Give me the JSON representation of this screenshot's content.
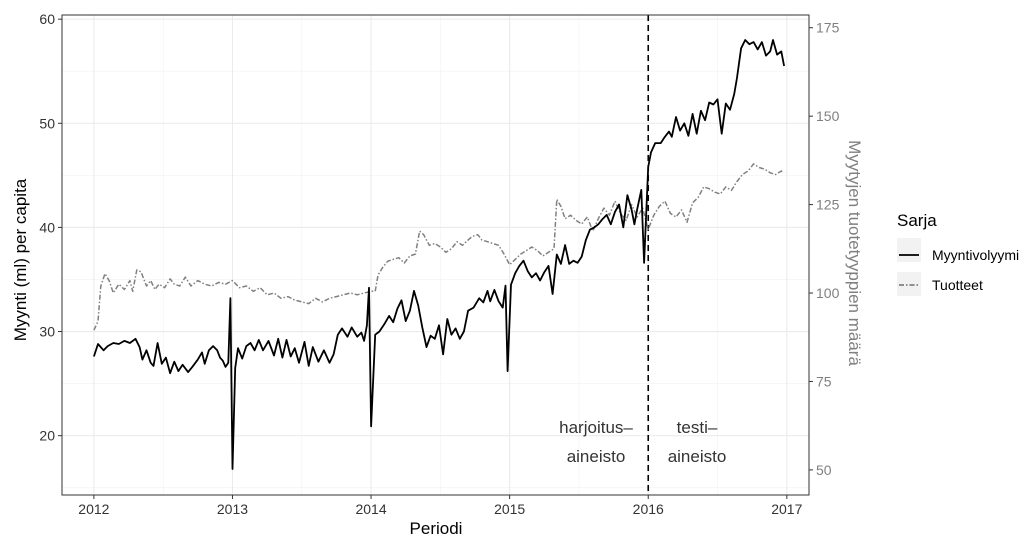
{
  "chart_data": {
    "type": "line",
    "xlabel": "Periodi",
    "ylabel": "Myynti (ml) per capita",
    "ylabel_right": "Myytyjen tuotetyyppien määrä",
    "xlim": [
      2011.77,
      2017.16
    ],
    "ylim": [
      14.3,
      60.4
    ],
    "ylim_right": [
      42.9,
      178.6
    ],
    "x_ticks": [
      2012,
      2013,
      2014,
      2015,
      2016,
      2017
    ],
    "y_ticks": [
      20,
      30,
      40,
      50,
      60
    ],
    "y_ticks_right": [
      50,
      75,
      100,
      125,
      150,
      175
    ],
    "grid": true,
    "legend": {
      "title": "Sarja",
      "position": "right",
      "entries": [
        "Myyntivolyymi",
        "Tuotteet"
      ]
    },
    "split_line_x": 2016,
    "annotations": {
      "train_line1": "harjoitus–",
      "train_line2": "aineisto",
      "test_line1": "testi–",
      "test_line2": "aineisto"
    },
    "series": [
      {
        "name": "Myyntivolyymi",
        "axis": "left",
        "color": "#000000",
        "style": "solid",
        "points": [
          [
            2012.0,
            27.6
          ],
          [
            2012.03,
            28.8
          ],
          [
            2012.07,
            28.2
          ],
          [
            2012.1,
            28.6
          ],
          [
            2012.14,
            28.9
          ],
          [
            2012.18,
            28.8
          ],
          [
            2012.22,
            29.1
          ],
          [
            2012.26,
            28.9
          ],
          [
            2012.3,
            29.3
          ],
          [
            2012.33,
            28.5
          ],
          [
            2012.35,
            27.3
          ],
          [
            2012.38,
            28.2
          ],
          [
            2012.41,
            27.0
          ],
          [
            2012.43,
            26.7
          ],
          [
            2012.46,
            28.9
          ],
          [
            2012.49,
            26.9
          ],
          [
            2012.52,
            27.5
          ],
          [
            2012.55,
            26.0
          ],
          [
            2012.58,
            27.1
          ],
          [
            2012.61,
            26.2
          ],
          [
            2012.64,
            26.8
          ],
          [
            2012.68,
            26.1
          ],
          [
            2012.71,
            26.6
          ],
          [
            2012.75,
            27.3
          ],
          [
            2012.78,
            28.0
          ],
          [
            2012.8,
            26.9
          ],
          [
            2012.83,
            28.2
          ],
          [
            2012.86,
            28.6
          ],
          [
            2012.89,
            28.2
          ],
          [
            2012.91,
            27.5
          ],
          [
            2012.93,
            27.2
          ],
          [
            2012.95,
            26.6
          ],
          [
            2012.97,
            27.0
          ],
          [
            2012.985,
            33.2
          ],
          [
            2013.0,
            16.8
          ],
          [
            2013.02,
            26.5
          ],
          [
            2013.04,
            28.4
          ],
          [
            2013.07,
            27.4
          ],
          [
            2013.1,
            28.6
          ],
          [
            2013.13,
            28.9
          ],
          [
            2013.16,
            28.2
          ],
          [
            2013.19,
            29.2
          ],
          [
            2013.22,
            28.2
          ],
          [
            2013.26,
            29.1
          ],
          [
            2013.3,
            27.7
          ],
          [
            2013.33,
            29.3
          ],
          [
            2013.36,
            27.5
          ],
          [
            2013.39,
            29.2
          ],
          [
            2013.42,
            27.6
          ],
          [
            2013.45,
            28.4
          ],
          [
            2013.48,
            27.0
          ],
          [
            2013.52,
            29.0
          ],
          [
            2013.55,
            26.7
          ],
          [
            2013.58,
            28.5
          ],
          [
            2013.62,
            27.1
          ],
          [
            2013.66,
            28.2
          ],
          [
            2013.7,
            27.0
          ],
          [
            2013.73,
            27.8
          ],
          [
            2013.76,
            29.7
          ],
          [
            2013.79,
            30.3
          ],
          [
            2013.83,
            29.5
          ],
          [
            2013.86,
            30.4
          ],
          [
            2013.9,
            29.5
          ],
          [
            2013.93,
            29.9
          ],
          [
            2013.95,
            29.1
          ],
          [
            2013.97,
            30.6
          ],
          [
            2013.985,
            34.2
          ],
          [
            2014.0,
            20.9
          ],
          [
            2014.03,
            29.7
          ],
          [
            2014.06,
            30.0
          ],
          [
            2014.1,
            30.8
          ],
          [
            2014.13,
            31.5
          ],
          [
            2014.16,
            30.9
          ],
          [
            2014.19,
            32.2
          ],
          [
            2014.22,
            33.0
          ],
          [
            2014.25,
            31.0
          ],
          [
            2014.28,
            32.0
          ],
          [
            2014.31,
            33.9
          ],
          [
            2014.34,
            32.5
          ],
          [
            2014.37,
            30.4
          ],
          [
            2014.4,
            28.5
          ],
          [
            2014.43,
            29.6
          ],
          [
            2014.46,
            29.3
          ],
          [
            2014.49,
            30.6
          ],
          [
            2014.52,
            27.8
          ],
          [
            2014.55,
            31.2
          ],
          [
            2014.58,
            29.7
          ],
          [
            2014.61,
            30.3
          ],
          [
            2014.64,
            29.3
          ],
          [
            2014.67,
            30.0
          ],
          [
            2014.7,
            32.0
          ],
          [
            2014.74,
            32.3
          ],
          [
            2014.78,
            33.2
          ],
          [
            2014.81,
            32.8
          ],
          [
            2014.84,
            33.9
          ],
          [
            2014.86,
            32.9
          ],
          [
            2014.89,
            34.0
          ],
          [
            2014.92,
            32.9
          ],
          [
            2014.95,
            32.3
          ],
          [
            2014.97,
            34.4
          ],
          [
            2014.985,
            26.2
          ],
          [
            2015.01,
            34.5
          ],
          [
            2015.04,
            35.6
          ],
          [
            2015.07,
            36.3
          ],
          [
            2015.1,
            36.8
          ],
          [
            2015.13,
            35.8
          ],
          [
            2015.16,
            35.2
          ],
          [
            2015.19,
            35.6
          ],
          [
            2015.22,
            34.9
          ],
          [
            2015.25,
            35.7
          ],
          [
            2015.28,
            36.3
          ],
          [
            2015.31,
            33.6
          ],
          [
            2015.34,
            37.4
          ],
          [
            2015.37,
            36.5
          ],
          [
            2015.4,
            38.3
          ],
          [
            2015.43,
            36.5
          ],
          [
            2015.46,
            36.8
          ],
          [
            2015.49,
            36.6
          ],
          [
            2015.52,
            37.2
          ],
          [
            2015.55,
            38.8
          ],
          [
            2015.58,
            39.8
          ],
          [
            2015.61,
            40.0
          ],
          [
            2015.64,
            40.3
          ],
          [
            2015.67,
            40.8
          ],
          [
            2015.7,
            41.2
          ],
          [
            2015.73,
            40.3
          ],
          [
            2015.76,
            41.5
          ],
          [
            2015.79,
            42.2
          ],
          [
            2015.82,
            40.0
          ],
          [
            2015.85,
            43.1
          ],
          [
            2015.88,
            41.7
          ],
          [
            2015.9,
            40.3
          ],
          [
            2015.92,
            41.7
          ],
          [
            2015.95,
            43.6
          ],
          [
            2015.97,
            36.6
          ],
          [
            2016.0,
            45.8
          ],
          [
            2016.02,
            47.2
          ],
          [
            2016.05,
            48.1
          ],
          [
            2016.09,
            48.1
          ],
          [
            2016.12,
            48.7
          ],
          [
            2016.15,
            49.2
          ],
          [
            2016.17,
            48.7
          ],
          [
            2016.2,
            50.6
          ],
          [
            2016.23,
            49.3
          ],
          [
            2016.26,
            50.0
          ],
          [
            2016.29,
            48.8
          ],
          [
            2016.32,
            50.9
          ],
          [
            2016.35,
            49.0
          ],
          [
            2016.38,
            51.2
          ],
          [
            2016.41,
            50.3
          ],
          [
            2016.44,
            52.0
          ],
          [
            2016.47,
            51.8
          ],
          [
            2016.5,
            52.3
          ],
          [
            2016.53,
            49.0
          ],
          [
            2016.56,
            51.9
          ],
          [
            2016.59,
            51.3
          ],
          [
            2016.62,
            52.8
          ],
          [
            2016.64,
            54.3
          ],
          [
            2016.67,
            57.2
          ],
          [
            2016.7,
            58.0
          ],
          [
            2016.73,
            57.6
          ],
          [
            2016.76,
            57.8
          ],
          [
            2016.79,
            57.1
          ],
          [
            2016.82,
            57.8
          ],
          [
            2016.85,
            56.5
          ],
          [
            2016.88,
            56.9
          ],
          [
            2016.9,
            58.0
          ],
          [
            2016.93,
            56.6
          ],
          [
            2016.96,
            56.9
          ],
          [
            2016.98,
            55.5
          ]
        ]
      },
      {
        "name": "Tuotteet",
        "axis": "right",
        "color": "#808080",
        "style": "dashed",
        "points": [
          [
            2012.0,
            89.5
          ],
          [
            2012.03,
            92.0
          ],
          [
            2012.05,
            102.0
          ],
          [
            2012.08,
            105.5
          ],
          [
            2012.11,
            103.5
          ],
          [
            2012.14,
            100.0
          ],
          [
            2012.18,
            102.5
          ],
          [
            2012.22,
            101.0
          ],
          [
            2012.26,
            103.5
          ],
          [
            2012.28,
            100.5
          ],
          [
            2012.31,
            106.5
          ],
          [
            2012.34,
            106.0
          ],
          [
            2012.38,
            102.0
          ],
          [
            2012.41,
            103.5
          ],
          [
            2012.44,
            101.0
          ],
          [
            2012.47,
            102.5
          ],
          [
            2012.51,
            101.5
          ],
          [
            2012.55,
            104.0
          ],
          [
            2012.58,
            102.5
          ],
          [
            2012.62,
            102.0
          ],
          [
            2012.66,
            104.5
          ],
          [
            2012.7,
            102.0
          ],
          [
            2012.75,
            103.5
          ],
          [
            2012.8,
            102.5
          ],
          [
            2012.85,
            102.0
          ],
          [
            2012.9,
            103.0
          ],
          [
            2012.95,
            102.5
          ],
          [
            2013.0,
            103.5
          ],
          [
            2013.05,
            101.5
          ],
          [
            2013.1,
            102.0
          ],
          [
            2013.15,
            100.5
          ],
          [
            2013.2,
            101.5
          ],
          [
            2013.25,
            99.5
          ],
          [
            2013.3,
            100.0
          ],
          [
            2013.35,
            98.5
          ],
          [
            2013.4,
            99.0
          ],
          [
            2013.45,
            98.0
          ],
          [
            2013.5,
            97.5
          ],
          [
            2013.55,
            97.0
          ],
          [
            2013.6,
            98.5
          ],
          [
            2013.65,
            97.5
          ],
          [
            2013.7,
            98.5
          ],
          [
            2013.75,
            99.0
          ],
          [
            2013.8,
            99.5
          ],
          [
            2013.85,
            100.0
          ],
          [
            2013.9,
            99.5
          ],
          [
            2013.95,
            100.0
          ],
          [
            2014.0,
            100.5
          ],
          [
            2014.03,
            100.5
          ],
          [
            2014.05,
            105.0
          ],
          [
            2014.08,
            107.0
          ],
          [
            2014.12,
            109.0
          ],
          [
            2014.16,
            109.5
          ],
          [
            2014.2,
            110.0
          ],
          [
            2014.24,
            108.5
          ],
          [
            2014.28,
            110.5
          ],
          [
            2014.32,
            111.0
          ],
          [
            2014.35,
            117.5
          ],
          [
            2014.38,
            116.5
          ],
          [
            2014.42,
            113.5
          ],
          [
            2014.46,
            114.0
          ],
          [
            2014.5,
            113.0
          ],
          [
            2014.54,
            111.5
          ],
          [
            2014.58,
            112.5
          ],
          [
            2014.62,
            114.5
          ],
          [
            2014.66,
            113.5
          ],
          [
            2014.7,
            115.0
          ],
          [
            2014.73,
            116.0
          ],
          [
            2014.77,
            116.5
          ],
          [
            2014.8,
            115.0
          ],
          [
            2014.84,
            114.5
          ],
          [
            2014.88,
            114.0
          ],
          [
            2014.92,
            113.5
          ],
          [
            2014.96,
            111.0
          ],
          [
            2015.0,
            108.0
          ],
          [
            2015.04,
            109.5
          ],
          [
            2015.08,
            111.0
          ],
          [
            2015.12,
            112.0
          ],
          [
            2015.16,
            113.0
          ],
          [
            2015.2,
            112.0
          ],
          [
            2015.24,
            110.5
          ],
          [
            2015.28,
            111.5
          ],
          [
            2015.32,
            112.5
          ],
          [
            2015.34,
            126.5
          ],
          [
            2015.37,
            124.5
          ],
          [
            2015.4,
            121.0
          ],
          [
            2015.44,
            122.0
          ],
          [
            2015.48,
            120.5
          ],
          [
            2015.52,
            119.5
          ],
          [
            2015.56,
            121.5
          ],
          [
            2015.6,
            117.5
          ],
          [
            2015.64,
            121.0
          ],
          [
            2015.68,
            124.0
          ],
          [
            2015.72,
            122.0
          ],
          [
            2015.76,
            126.0
          ],
          [
            2015.8,
            122.5
          ],
          [
            2015.84,
            120.5
          ],
          [
            2015.88,
            125.0
          ],
          [
            2015.92,
            121.5
          ],
          [
            2015.96,
            124.0
          ],
          [
            2016.0,
            118.0
          ],
          [
            2016.04,
            122.0
          ],
          [
            2016.08,
            124.5
          ],
          [
            2016.12,
            126.0
          ],
          [
            2016.16,
            122.5
          ],
          [
            2016.2,
            121.5
          ],
          [
            2016.24,
            123.5
          ],
          [
            2016.28,
            120.0
          ],
          [
            2016.32,
            125.5
          ],
          [
            2016.36,
            127.0
          ],
          [
            2016.4,
            130.0
          ],
          [
            2016.44,
            129.5
          ],
          [
            2016.48,
            128.5
          ],
          [
            2016.52,
            128.0
          ],
          [
            2016.56,
            130.0
          ],
          [
            2016.6,
            129.0
          ],
          [
            2016.64,
            131.5
          ],
          [
            2016.68,
            133.5
          ],
          [
            2016.72,
            134.5
          ],
          [
            2016.76,
            136.5
          ],
          [
            2016.8,
            135.5
          ],
          [
            2016.84,
            135.0
          ],
          [
            2016.88,
            134.0
          ],
          [
            2016.92,
            133.5
          ],
          [
            2016.96,
            134.5
          ],
          [
            2016.98,
            134.0
          ]
        ]
      }
    ]
  }
}
